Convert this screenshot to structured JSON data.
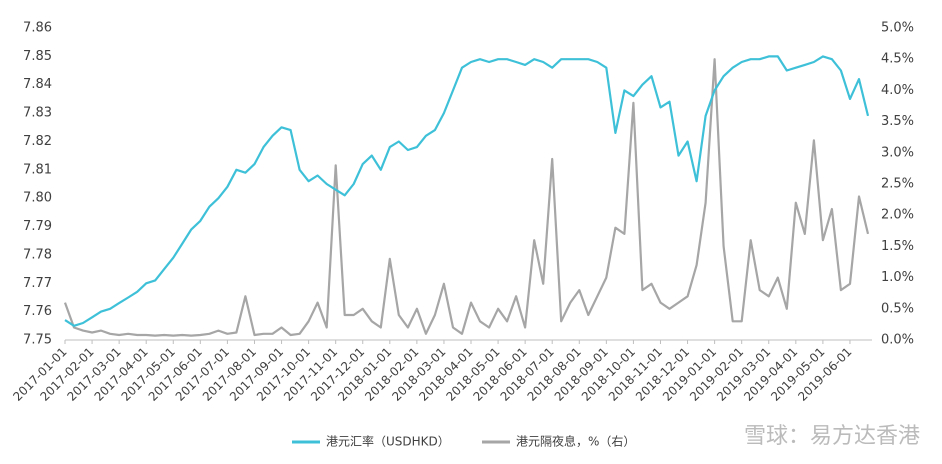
{
  "chart_data": {
    "type": "line",
    "watermark": "雪球：易方达香港",
    "categories": [
      "2017-01-01",
      null,
      null,
      "2017-02-01",
      null,
      null,
      "2017-03-01",
      null,
      null,
      "2017-04-01",
      null,
      null,
      "2017-05-01",
      null,
      null,
      "2017-06-01",
      null,
      null,
      "2017-07-01",
      null,
      null,
      "2017-08-01",
      null,
      null,
      "2017-09-01",
      null,
      null,
      "2017-10-01",
      null,
      null,
      "2017-11-01",
      null,
      null,
      "2017-12-01",
      null,
      null,
      "2018-01-01",
      null,
      null,
      "2018-02-01",
      null,
      null,
      "2018-03-01",
      null,
      null,
      "2018-04-01",
      null,
      null,
      "2018-05-01",
      null,
      null,
      "2018-06-01",
      null,
      null,
      "2018-07-01",
      null,
      null,
      "2018-08-01",
      null,
      null,
      "2018-09-01",
      null,
      null,
      "2018-10-01",
      null,
      null,
      "2018-11-01",
      null,
      null,
      "2018-12-01",
      null,
      null,
      "2019-01-01",
      null,
      null,
      "2019-02-01",
      null,
      null,
      "2019-03-01",
      null,
      null,
      "2019-04-01",
      null,
      null,
      "2019-05-01",
      null,
      null,
      "2019-06-01",
      null,
      null
    ],
    "series": [
      {
        "name": "港元汇率（USDHKD）",
        "color": "#3ec1d8",
        "values": [
          7.757,
          7.755,
          7.756,
          7.758,
          7.76,
          7.761,
          7.763,
          7.765,
          7.767,
          7.77,
          7.771,
          7.775,
          7.779,
          7.784,
          7.789,
          7.792,
          7.797,
          7.8,
          7.804,
          7.81,
          7.809,
          7.812,
          7.818,
          7.822,
          7.825,
          7.824,
          7.81,
          7.806,
          7.808,
          7.805,
          7.803,
          7.801,
          7.805,
          7.812,
          7.815,
          7.81,
          7.818,
          7.82,
          7.817,
          7.818,
          7.822,
          7.824,
          7.83,
          7.838,
          7.846,
          7.848,
          7.849,
          7.848,
          7.849,
          7.849,
          7.848,
          7.847,
          7.849,
          7.848,
          7.846,
          7.849,
          7.849,
          7.849,
          7.849,
          7.848,
          7.846,
          7.823,
          7.838,
          7.836,
          7.84,
          7.843,
          7.832,
          7.834,
          7.815,
          7.82,
          7.806,
          7.829,
          7.838,
          7.843,
          7.846,
          7.848,
          7.849,
          7.849,
          7.85,
          7.85,
          7.845,
          7.846,
          7.847,
          7.848,
          7.85,
          7.849,
          7.845,
          7.835,
          7.842,
          7.829
        ]
      },
      {
        "name": "港元隔夜息，%（右）",
        "color": "#a6a6a6",
        "axis": "y2",
        "values": [
          0.6,
          0.2,
          0.15,
          0.12,
          0.15,
          0.1,
          0.08,
          0.1,
          0.08,
          0.08,
          0.07,
          0.08,
          0.07,
          0.08,
          0.07,
          0.08,
          0.1,
          0.15,
          0.1,
          0.12,
          0.7,
          0.08,
          0.1,
          0.1,
          0.2,
          0.08,
          0.1,
          0.3,
          0.6,
          0.2,
          2.8,
          0.4,
          0.4,
          0.5,
          0.3,
          0.2,
          1.3,
          0.4,
          0.2,
          0.5,
          0.1,
          0.4,
          0.9,
          0.2,
          0.1,
          0.6,
          0.3,
          0.2,
          0.5,
          0.3,
          0.7,
          0.2,
          1.6,
          0.9,
          2.9,
          0.3,
          0.6,
          0.8,
          0.4,
          0.7,
          1.0,
          1.8,
          1.7,
          3.8,
          0.8,
          0.9,
          0.6,
          0.5,
          0.6,
          0.7,
          1.2,
          2.2,
          4.5,
          1.5,
          0.3,
          0.3,
          1.6,
          0.8,
          0.7,
          1.0,
          0.5,
          2.2,
          1.7,
          3.2,
          1.6,
          2.1,
          0.8,
          0.9,
          2.3,
          1.7
        ]
      }
    ],
    "ylim": [
      7.75,
      7.86
    ],
    "yticks": [
      7.75,
      7.76,
      7.77,
      7.78,
      7.79,
      {
        "value": 7.8,
        "label": "7.80"
      },
      7.81,
      7.82,
      7.83,
      7.84,
      7.85,
      7.86
    ],
    "y2lim": [
      0,
      5
    ],
    "y2ticks": [
      {
        "value": 0,
        "label": "0.0%"
      },
      {
        "value": 0.5,
        "label": "0.5%"
      },
      {
        "value": 1,
        "label": "1.0%"
      },
      {
        "value": 1.5,
        "label": "1.5%"
      },
      {
        "value": 2,
        "label": "2.0%"
      },
      {
        "value": 2.5,
        "label": "2.5%"
      },
      {
        "value": 3,
        "label": "3.0%"
      },
      {
        "value": 3.5,
        "label": "3.5%"
      },
      {
        "value": 4,
        "label": "4.0%"
      },
      {
        "value": 4.5,
        "label": "4.5%"
      },
      {
        "value": 5,
        "label": "5.0%"
      }
    ],
    "grid": false,
    "legend": "bottom"
  }
}
